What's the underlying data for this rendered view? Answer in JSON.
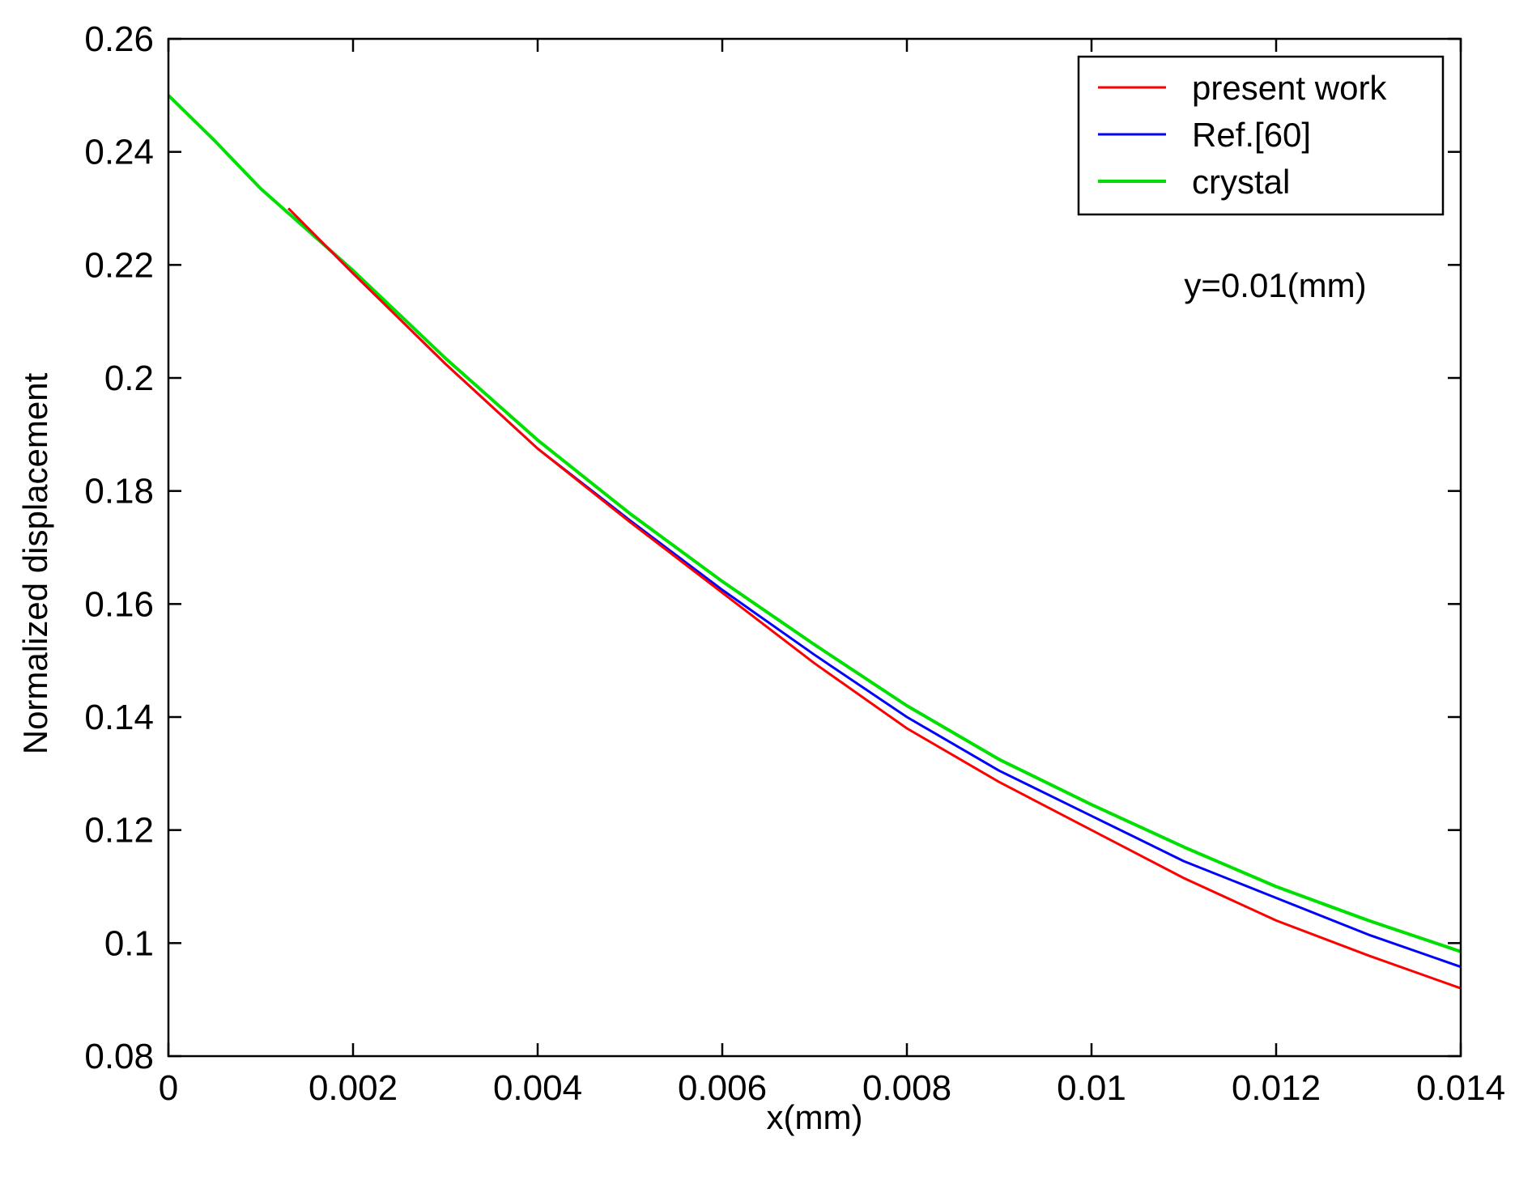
{
  "chart_data": {
    "type": "line",
    "title": "",
    "xlabel": "x(mm)",
    "ylabel": "Normalized displacement",
    "xlim": [
      0,
      0.014
    ],
    "ylim": [
      0.08,
      0.26
    ],
    "x_ticks": [
      0,
      0.002,
      0.004,
      0.006,
      0.008,
      0.01,
      0.012,
      0.014
    ],
    "x_tick_labels": [
      "0",
      "0.002",
      "0.004",
      "0.006",
      "0.008",
      "0.01",
      "0.012",
      "0.014"
    ],
    "y_ticks": [
      0.08,
      0.1,
      0.12,
      0.14,
      0.16,
      0.18,
      0.2,
      0.22,
      0.24,
      0.26
    ],
    "y_tick_labels": [
      "0.08",
      "0.1",
      "0.12",
      "0.14",
      "0.16",
      "0.18",
      "0.2",
      "0.22",
      "0.24",
      "0.26"
    ],
    "grid": false,
    "legend_position": "top-right",
    "annotation": "y=0.01(mm)",
    "series": [
      {
        "name": "present work",
        "color": "#ff0000",
        "x": [
          0.0013,
          0.002,
          0.003,
          0.004,
          0.005,
          0.006,
          0.007,
          0.008,
          0.009,
          0.01,
          0.011,
          0.012,
          0.013,
          0.014
        ],
        "y": [
          0.23,
          0.2185,
          0.2025,
          0.1875,
          0.1745,
          0.162,
          0.1495,
          0.138,
          0.1285,
          0.12,
          0.1115,
          0.104,
          0.0978,
          0.092
        ]
      },
      {
        "name": "Ref.[60]",
        "color": "#0000ff",
        "x": [
          0.0013,
          0.002,
          0.003,
          0.004,
          0.005,
          0.006,
          0.007,
          0.008,
          0.009,
          0.01,
          0.011,
          0.012,
          0.013,
          0.014
        ],
        "y": [
          0.23,
          0.2185,
          0.2025,
          0.1875,
          0.1748,
          0.1625,
          0.151,
          0.14,
          0.1305,
          0.1225,
          0.1145,
          0.108,
          0.1015,
          0.0958
        ]
      },
      {
        "name": "crystal",
        "color": "#00e000",
        "x": [
          0,
          0.0005,
          0.001,
          0.002,
          0.003,
          0.004,
          0.005,
          0.006,
          0.007,
          0.008,
          0.009,
          0.01,
          0.011,
          0.012,
          0.013,
          0.014
        ],
        "y": [
          0.25,
          0.242,
          0.2335,
          0.219,
          0.2035,
          0.189,
          0.176,
          0.164,
          0.1528,
          0.142,
          0.1325,
          0.1245,
          0.117,
          0.11,
          0.104,
          0.0985
        ]
      }
    ]
  }
}
